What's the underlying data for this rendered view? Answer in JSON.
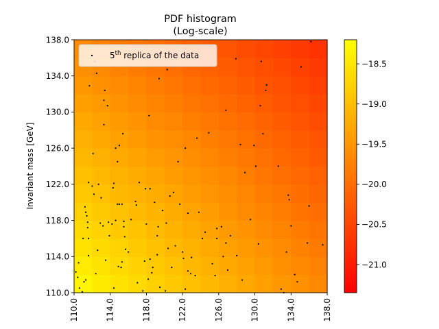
{
  "chart_data": {
    "type": "heatmap",
    "title": "PDF histogram",
    "subtitle": "(Log-scale)",
    "xlabel": "",
    "ylabel": "Invariant mass [GeV]",
    "xlim": [
      110.0,
      138.0
    ],
    "ylim": [
      110.0,
      138.0
    ],
    "x_ticks": [
      "110.0",
      "114.0",
      "118.0",
      "122.0",
      "126.0",
      "130.0",
      "134.0",
      "138.0"
    ],
    "y_ticks": [
      "110.0",
      "114.0",
      "118.0",
      "122.0",
      "126.0",
      "130.0",
      "134.0",
      "138.0"
    ],
    "x_tick_values": [
      110,
      114,
      118,
      122,
      126,
      130,
      134,
      138
    ],
    "y_tick_values": [
      110,
      114,
      118,
      122,
      126,
      130,
      134,
      138
    ],
    "colormap": "autumn_r",
    "color_low": "#ff0000",
    "color_high": "#ffff00",
    "colorbar_range": [
      -21.35,
      -18.2
    ],
    "colorbar_ticks": [
      "-18.5",
      "-19.0",
      "-19.5",
      "-20.0",
      "-20.5",
      "-21.0"
    ],
    "colorbar_tick_values": [
      -18.5,
      -19.0,
      -19.5,
      -20.0,
      -20.5,
      -21.0
    ],
    "bins_x": 14,
    "bins_y": 14,
    "legend": {
      "label_prefix": "5",
      "label_sup": "th",
      "label_suffix": " replica of the data",
      "position": "upper-left",
      "marker_color": "#000000"
    },
    "scatter_points": [
      [
        110.2,
        112.3
      ],
      [
        110.4,
        111.7
      ],
      [
        110.6,
        110.5
      ],
      [
        110.9,
        110.1
      ],
      [
        110.5,
        113.3
      ],
      [
        111.0,
        116.0
      ],
      [
        111.1,
        111.2
      ],
      [
        111.3,
        111.4
      ],
      [
        111.2,
        119.5
      ],
      [
        111.3,
        118.9
      ],
      [
        111.4,
        118.5
      ],
      [
        111.5,
        117.8
      ],
      [
        111.5,
        117.2
      ],
      [
        111.6,
        122.2
      ],
      [
        111.6,
        114.1
      ],
      [
        111.6,
        116.0
      ],
      [
        111.7,
        132.9
      ],
      [
        112.0,
        121.8
      ],
      [
        112.1,
        125.4
      ],
      [
        112.2,
        120.9
      ],
      [
        112.3,
        135.6
      ],
      [
        112.4,
        112.1
      ],
      [
        112.5,
        134.3
      ],
      [
        112.6,
        114.7
      ],
      [
        112.7,
        122.0
      ],
      [
        112.9,
        117.7
      ],
      [
        113.0,
        120.5
      ],
      [
        113.2,
        117.4
      ],
      [
        113.3,
        128.6
      ],
      [
        113.3,
        131.3
      ],
      [
        113.4,
        132.4
      ],
      [
        113.5,
        113.6
      ],
      [
        113.7,
        130.7
      ],
      [
        113.8,
        117.8
      ],
      [
        113.9,
        116.3
      ],
      [
        114.2,
        117.6
      ],
      [
        114.3,
        121.6
      ],
      [
        114.4,
        110.5
      ],
      [
        114.4,
        122.1
      ],
      [
        114.6,
        118.0
      ],
      [
        114.8,
        119.8
      ],
      [
        114.9,
        112.9
      ],
      [
        115.0,
        119.8
      ],
      [
        115.2,
        112.8
      ],
      [
        115.3,
        113.4
      ],
      [
        115.5,
        117.3
      ],
      [
        115.6,
        116.2
      ],
      [
        114.8,
        124.5
      ],
      [
        114.6,
        126.0
      ],
      [
        115.0,
        126.3
      ],
      [
        115.4,
        127.6
      ],
      [
        115.3,
        119.8
      ],
      [
        115.5,
        117.9
      ],
      [
        115.7,
        114.8
      ],
      [
        116.0,
        114.5
      ],
      [
        116.3,
        118.1
      ],
      [
        116.8,
        120.1
      ],
      [
        116.9,
        119.7
      ],
      [
        117.0,
        111.1
      ],
      [
        117.2,
        122.2
      ],
      [
        117.6,
        110.2
      ],
      [
        117.8,
        113.5
      ],
      [
        117.9,
        121.5
      ],
      [
        118.0,
        117.6
      ],
      [
        118.2,
        111.5
      ],
      [
        118.3,
        129.6
      ],
      [
        118.4,
        113.7
      ],
      [
        118.4,
        121.5
      ],
      [
        118.6,
        112.2
      ],
      [
        118.7,
        112.8
      ],
      [
        118.9,
        120.0
      ],
      [
        119.2,
        116.3
      ],
      [
        119.3,
        117.3
      ],
      [
        119.5,
        110.6
      ],
      [
        119.2,
        114.2
      ],
      [
        119.4,
        133.7
      ],
      [
        119.8,
        119.1
      ],
      [
        120.1,
        110.2
      ],
      [
        120.2,
        117.7
      ],
      [
        120.3,
        134.7
      ],
      [
        120.4,
        114.9
      ],
      [
        120.6,
        120.7
      ],
      [
        120.8,
        112.8
      ],
      [
        121.0,
        121.1
      ],
      [
        121.2,
        115.2
      ],
      [
        121.5,
        124.5
      ],
      [
        121.7,
        119.8
      ],
      [
        122.0,
        114.5
      ],
      [
        122.1,
        113.8
      ],
      [
        122.3,
        110.4
      ],
      [
        122.3,
        126.0
      ],
      [
        122.6,
        118.8
      ],
      [
        122.6,
        112.4
      ],
      [
        122.9,
        112.1
      ],
      [
        123.0,
        113.9
      ],
      [
        123.4,
        111.9
      ],
      [
        123.6,
        127.1
      ],
      [
        123.8,
        118.9
      ],
      [
        124.2,
        116.0
      ],
      [
        124.5,
        116.7
      ],
      [
        124.9,
        127.7
      ],
      [
        125.3,
        113.2
      ],
      [
        125.6,
        111.9
      ],
      [
        125.8,
        117.1
      ],
      [
        125.8,
        116.0
      ],
      [
        126.3,
        117.3
      ],
      [
        126.5,
        114.0
      ],
      [
        126.8,
        115.5
      ],
      [
        127.0,
        112.5
      ],
      [
        127.3,
        116.3
      ],
      [
        126.8,
        130.2
      ],
      [
        127.9,
        135.9
      ],
      [
        128.0,
        114.1
      ],
      [
        128.4,
        126.4
      ],
      [
        128.6,
        111.4
      ],
      [
        128.9,
        123.3
      ],
      [
        129.5,
        118.1
      ],
      [
        129.9,
        126.3
      ],
      [
        130.1,
        124.0
      ],
      [
        130.4,
        115.4
      ],
      [
        130.6,
        130.7
      ],
      [
        130.7,
        135.6
      ],
      [
        130.9,
        127.6
      ],
      [
        131.2,
        132.4
      ],
      [
        131.3,
        133.0
      ],
      [
        132.6,
        124.0
      ],
      [
        132.9,
        110.4
      ],
      [
        133.2,
        110.0
      ],
      [
        133.5,
        114.5
      ],
      [
        133.7,
        120.8
      ],
      [
        133.8,
        120.3
      ],
      [
        134.0,
        117.4
      ],
      [
        134.4,
        112.0
      ],
      [
        134.7,
        111.2
      ],
      [
        135.1,
        135.0
      ],
      [
        135.8,
        115.5
      ],
      [
        136.0,
        119.6
      ],
      [
        136.2,
        137.8
      ],
      [
        137.5,
        115.3
      ]
    ]
  }
}
